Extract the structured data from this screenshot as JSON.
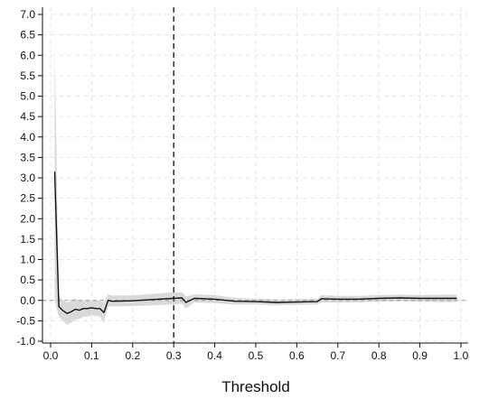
{
  "chart_data": {
    "type": "line",
    "title": "",
    "xlabel": "Threshold",
    "ylabel": "",
    "xlim": [
      0.0,
      1.0
    ],
    "ylim": [
      -1.0,
      7.0
    ],
    "x_ticks": [
      "0.0",
      "0.1",
      "0.2",
      "0.3",
      "0.4",
      "0.5",
      "0.6",
      "0.7",
      "0.8",
      "0.9",
      "1.0"
    ],
    "y_ticks": [
      "-1.0",
      "-0.5",
      "0.0",
      "0.5",
      "1.0",
      "1.5",
      "2.0",
      "2.5",
      "3.0",
      "3.5",
      "4.0",
      "4.5",
      "5.0",
      "5.5",
      "6.0",
      "6.5",
      "7.0"
    ],
    "grid": true,
    "reference_lines": [
      {
        "orientation": "vertical",
        "value": 0.3,
        "style": "dashed",
        "color": "#111111"
      },
      {
        "orientation": "horizontal",
        "value": 0.0,
        "style": "dashed",
        "color": "#999999"
      }
    ],
    "series": [
      {
        "style": "line with confidence band",
        "line_color": "#111111",
        "band_color": "#d9d9d9",
        "x": [
          0.01,
          0.02,
          0.03,
          0.04,
          0.05,
          0.06,
          0.07,
          0.08,
          0.09,
          0.1,
          0.11,
          0.12,
          0.13,
          0.14,
          0.15,
          0.2,
          0.25,
          0.3,
          0.32,
          0.33,
          0.34,
          0.35,
          0.4,
          0.45,
          0.5,
          0.55,
          0.6,
          0.65,
          0.66,
          0.7,
          0.75,
          0.8,
          0.85,
          0.9,
          0.95,
          0.99
        ],
        "y": [
          3.15,
          -0.15,
          -0.25,
          -0.32,
          -0.28,
          -0.22,
          -0.24,
          -0.2,
          -0.2,
          -0.18,
          -0.2,
          -0.2,
          -0.3,
          0.0,
          -0.02,
          -0.01,
          0.02,
          0.05,
          0.06,
          -0.05,
          0.0,
          0.05,
          0.03,
          -0.02,
          -0.03,
          -0.05,
          -0.04,
          -0.03,
          0.04,
          0.03,
          0.03,
          0.05,
          0.06,
          0.05,
          0.05,
          0.05
        ],
        "lower": [
          0.0,
          -0.4,
          -0.5,
          -0.6,
          -0.55,
          -0.48,
          -0.45,
          -0.4,
          -0.4,
          -0.36,
          -0.38,
          -0.4,
          -0.55,
          -0.15,
          -0.15,
          -0.14,
          -0.12,
          -0.1,
          -0.08,
          -0.2,
          -0.12,
          -0.05,
          -0.07,
          -0.1,
          -0.1,
          -0.12,
          -0.11,
          -0.1,
          -0.05,
          -0.05,
          -0.05,
          -0.03,
          -0.02,
          -0.03,
          -0.04,
          -0.04
        ],
        "upper": [
          6.3,
          0.1,
          0.0,
          -0.05,
          0.0,
          0.04,
          0.0,
          0.0,
          0.0,
          0.0,
          0.0,
          0.0,
          -0.05,
          0.15,
          0.12,
          0.12,
          0.16,
          0.2,
          0.2,
          0.1,
          0.12,
          0.15,
          0.13,
          0.06,
          0.04,
          0.02,
          0.03,
          0.04,
          0.13,
          0.11,
          0.11,
          0.13,
          0.14,
          0.13,
          0.14,
          0.14
        ]
      }
    ]
  }
}
